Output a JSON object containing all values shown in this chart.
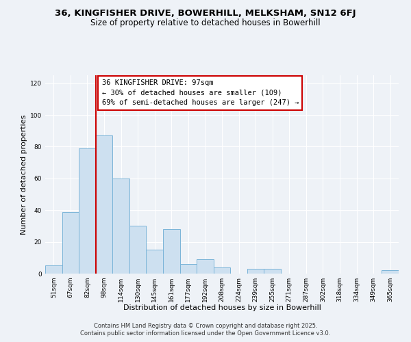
{
  "title": "36, KINGFISHER DRIVE, BOWERHILL, MELKSHAM, SN12 6FJ",
  "subtitle": "Size of property relative to detached houses in Bowerhill",
  "xlabel": "Distribution of detached houses by size in Bowerhill",
  "ylabel": "Number of detached properties",
  "bar_color": "#cde0f0",
  "bar_edge_color": "#7ab4d8",
  "background_color": "#eef2f7",
  "grid_color": "#ffffff",
  "categories": [
    "51sqm",
    "67sqm",
    "82sqm",
    "98sqm",
    "114sqm",
    "130sqm",
    "145sqm",
    "161sqm",
    "177sqm",
    "192sqm",
    "208sqm",
    "224sqm",
    "239sqm",
    "255sqm",
    "271sqm",
    "287sqm",
    "302sqm",
    "318sqm",
    "334sqm",
    "349sqm",
    "365sqm"
  ],
  "values": [
    5,
    39,
    79,
    87,
    60,
    30,
    15,
    28,
    6,
    9,
    4,
    0,
    3,
    3,
    0,
    0,
    0,
    0,
    0,
    0,
    2
  ],
  "vline_x_index": 3,
  "vline_color": "#cc0000",
  "annotation_title": "36 KINGFISHER DRIVE: 97sqm",
  "annotation_line1": "← 30% of detached houses are smaller (109)",
  "annotation_line2": "69% of semi-detached houses are larger (247) →",
  "ylim": [
    0,
    125
  ],
  "yticks": [
    0,
    20,
    40,
    60,
    80,
    100,
    120
  ],
  "footer1": "Contains HM Land Registry data © Crown copyright and database right 2025.",
  "footer2": "Contains public sector information licensed under the Open Government Licence v3.0.",
  "title_fontsize": 9.5,
  "subtitle_fontsize": 8.5,
  "xlabel_fontsize": 8,
  "ylabel_fontsize": 8,
  "tick_fontsize": 6.5,
  "annotation_fontsize": 7.5,
  "footer_fontsize": 6.0
}
